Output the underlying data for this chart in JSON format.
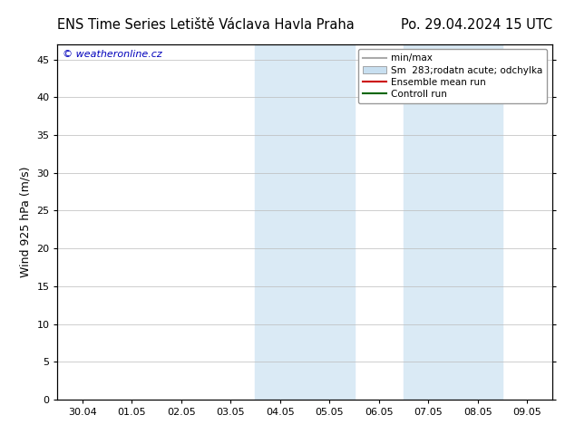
{
  "title_left": "ENS Time Series Letiště Václava Havla Praha",
  "title_right": "Po. 29.04.2024 15 UTC",
  "ylabel": "Wind 925 hPa (m/s)",
  "watermark": "© weatheronline.cz",
  "watermark_color": "#0000bb",
  "ylim": [
    0,
    47
  ],
  "yticks": [
    0,
    5,
    10,
    15,
    20,
    25,
    30,
    35,
    40,
    45
  ],
  "xtick_labels": [
    "30.04",
    "01.05",
    "02.05",
    "03.05",
    "04.05",
    "05.05",
    "06.05",
    "07.05",
    "08.05",
    "09.05"
  ],
  "n_xticks": 10,
  "shaded_bands": [
    {
      "xstart": 4,
      "xend": 6,
      "color": "#daeaf5"
    },
    {
      "xstart": 7,
      "xend": 9,
      "color": "#daeaf5"
    }
  ],
  "legend_entries": [
    {
      "label": "min/max",
      "color": "#aaaaaa",
      "type": "line",
      "linewidth": 1.5
    },
    {
      "label": "Sm  283;rodatn acute; odchylka",
      "color": "#c8dff0",
      "type": "patch"
    },
    {
      "label": "Ensemble mean run",
      "color": "#cc0000",
      "type": "line",
      "linewidth": 1.5
    },
    {
      "label": "Controll run",
      "color": "#006600",
      "type": "line",
      "linewidth": 1.5
    }
  ],
  "background_color": "#ffffff",
  "plot_bg_color": "#ffffff",
  "spine_color": "#000000",
  "grid_color": "#bbbbbb",
  "title_fontsize": 10.5,
  "tick_fontsize": 8,
  "ylabel_fontsize": 9,
  "legend_fontsize": 7.5,
  "watermark_fontsize": 8
}
